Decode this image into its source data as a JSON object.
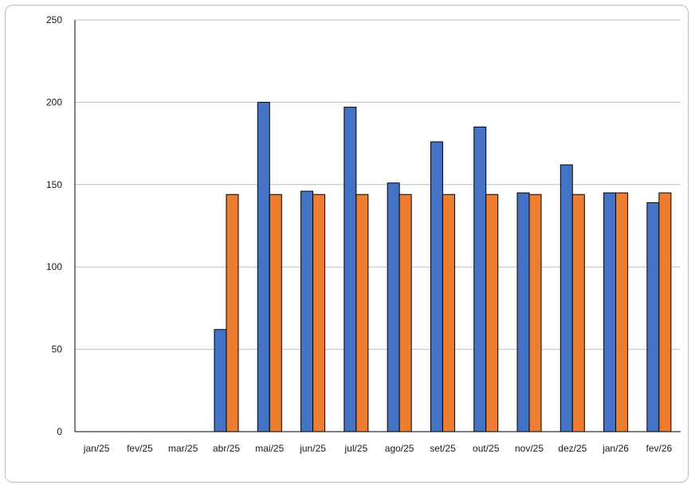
{
  "chart_data": {
    "type": "bar",
    "title": "",
    "xlabel": "",
    "ylabel": "",
    "ylim": [
      0,
      250
    ],
    "yticks": [
      0,
      50,
      100,
      150,
      200,
      250
    ],
    "grid": true,
    "legend": "none",
    "categories": [
      "jan/25",
      "fev/25",
      "mar/25",
      "abr/25",
      "mai/25",
      "jun/25",
      "jul/25",
      "ago/25",
      "set/25",
      "out/25",
      "nov/25",
      "dez/25",
      "jan/26",
      "fev/26"
    ],
    "series": [
      {
        "color": "#4472c4",
        "values": [
          0,
          0,
          0,
          62,
          200,
          146,
          197,
          151,
          176,
          185,
          145,
          162,
          145,
          139
        ]
      },
      {
        "color": "#ed7d31",
        "values": [
          0,
          0,
          0,
          144,
          144,
          144,
          144,
          144,
          144,
          144,
          144,
          144,
          145,
          145
        ]
      }
    ]
  }
}
